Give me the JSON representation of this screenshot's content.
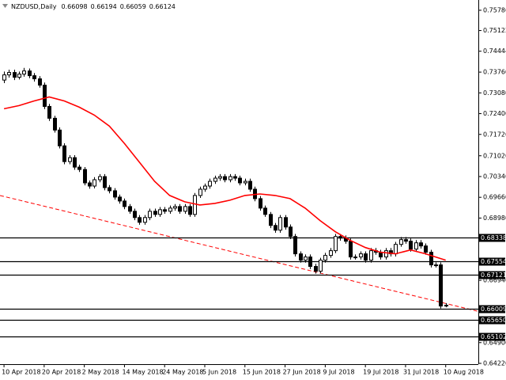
{
  "chart_data": {
    "type": "candlestick",
    "title": "NZDUSD,Daily",
    "categories": [
      "10 Apr 2018",
      null,
      null,
      null,
      null,
      null,
      null,
      null,
      "20 Apr 2018",
      null,
      null,
      null,
      null,
      null,
      null,
      null,
      "2 May 2018",
      null,
      null,
      null,
      null,
      null,
      null,
      null,
      "14 May 2018",
      null,
      null,
      null,
      null,
      null,
      null,
      null,
      "24 May 2018",
      null,
      null,
      null,
      null,
      null,
      null,
      null,
      "5 Jun 2018",
      null,
      null,
      null,
      null,
      null,
      null,
      null,
      "15 Jun 2018",
      null,
      null,
      null,
      null,
      null,
      null,
      null,
      "27 Jun 2018",
      null,
      null,
      null,
      null,
      null,
      null,
      null,
      "9 Jul 2018",
      null,
      null,
      null,
      null,
      null,
      null,
      null,
      "19 Jul 2018",
      null,
      null,
      null,
      null,
      null,
      null,
      null,
      "31 Jul 2018",
      null,
      null,
      null,
      null,
      null,
      null,
      null,
      "10 Aug 2018"
    ],
    "open": [
      0.735,
      0.73669,
      0.73747,
      0.73592,
      0.73695,
      0.73798,
      0.73643,
      0.7354,
      0.73333,
      0.72636,
      0.72249,
      0.71862,
      0.71345,
      0.70829,
      0.70958,
      0.70648,
      0.70571,
      0.70132,
      0.70028,
      0.70235,
      0.70338,
      0.69977,
      0.69874,
      0.69667,
      0.69538,
      0.69357,
      0.69202,
      0.68996,
      0.68841,
      0.68996,
      0.69202,
      0.69099,
      0.69254,
      0.69202,
      0.69306,
      0.69357,
      0.69202,
      0.69357,
      0.69099,
      0.69719,
      0.69925,
      0.70028,
      0.70183,
      0.70287,
      0.70338,
      0.70235,
      0.70338,
      0.70287,
      0.70132,
      0.70183,
      0.69925,
      0.69615,
      0.69306,
      0.69099,
      0.68737,
      0.68583,
      0.68996,
      0.68686,
      0.68376,
      0.67808,
      0.67601,
      0.67705,
      0.67395,
      0.6724,
      0.67601,
      0.67756,
      0.67911,
      0.68376,
      0.68324,
      0.68221,
      0.67705,
      0.67705,
      0.67808,
      0.67601,
      0.67911,
      0.6786,
      0.67705,
      0.67911,
      0.67808,
      0.68118,
      0.68273,
      0.68221,
      0.67963,
      0.68169,
      0.68066,
      0.6786,
      0.67446,
      0.67446,
      0.66098
    ],
    "high": [
      0.7378,
      0.7384,
      0.7384,
      0.7378,
      0.739,
      0.7388,
      0.7373,
      0.7363,
      0.7342,
      0.7272,
      0.7233,
      0.7195,
      0.7143,
      0.7104,
      0.7104,
      0.7073,
      0.7065,
      0.7021,
      0.7032,
      0.7042,
      0.7042,
      0.7006,
      0.6996,
      0.6975,
      0.6962,
      0.6944,
      0.6929,
      0.6908,
      0.6908,
      0.6929,
      0.6929,
      0.6934,
      0.6934,
      0.6939,
      0.6944,
      0.6944,
      0.6944,
      0.6944,
      0.698,
      0.7001,
      0.7011,
      0.7027,
      0.7037,
      0.7042,
      0.7042,
      0.7042,
      0.7042,
      0.7037,
      0.7027,
      0.7027,
      0.7001,
      0.697,
      0.6939,
      0.6918,
      0.6882,
      0.6908,
      0.6908,
      0.6877,
      0.6846,
      0.6789,
      0.6779,
      0.6779,
      0.6748,
      0.6768,
      0.6784,
      0.68,
      0.6846,
      0.6846,
      0.6841,
      0.6831,
      0.6779,
      0.6789,
      0.6789,
      0.68,
      0.68,
      0.6794,
      0.68,
      0.68,
      0.682,
      0.6836,
      0.6836,
      0.6831,
      0.6826,
      0.6826,
      0.6815,
      0.6794,
      0.6753,
      0.6753,
      0.66194
    ],
    "low": [
      0.734,
      0.7358,
      0.735,
      0.7352,
      0.7361,
      0.7356,
      0.7345,
      0.7325,
      0.7255,
      0.7216,
      0.7178,
      0.7126,
      0.7074,
      0.7074,
      0.7056,
      0.7049,
      0.7005,
      0.6994,
      0.6995,
      0.7015,
      0.6989,
      0.6979,
      0.6958,
      0.6945,
      0.6927,
      0.6912,
      0.6891,
      0.6876,
      0.6876,
      0.6891,
      0.6902,
      0.6902,
      0.6912,
      0.6912,
      0.6922,
      0.6912,
      0.6912,
      0.6902,
      0.6902,
      0.6964,
      0.6984,
      0.6994,
      0.701,
      0.702,
      0.7015,
      0.7015,
      0.702,
      0.7005,
      0.7005,
      0.6984,
      0.6953,
      0.6922,
      0.6902,
      0.6865,
      0.685,
      0.685,
      0.686,
      0.6829,
      0.6772,
      0.6752,
      0.6752,
      0.6731,
      0.6716,
      0.6716,
      0.6752,
      0.6768,
      0.6783,
      0.6824,
      0.6814,
      0.6762,
      0.6762,
      0.6762,
      0.6752,
      0.6752,
      0.6778,
      0.6762,
      0.6762,
      0.6772,
      0.6772,
      0.6804,
      0.6814,
      0.6788,
      0.6788,
      0.6798,
      0.6778,
      0.6736,
      0.6736,
      0.6602,
      0.66059
    ],
    "close": [
      0.73669,
      0.73747,
      0.73592,
      0.73695,
      0.73798,
      0.73643,
      0.7354,
      0.73333,
      0.72636,
      0.72249,
      0.71862,
      0.71345,
      0.70829,
      0.70958,
      0.70648,
      0.70571,
      0.70132,
      0.70028,
      0.70235,
      0.70338,
      0.69977,
      0.69874,
      0.69667,
      0.69538,
      0.69357,
      0.69202,
      0.68996,
      0.68841,
      0.68996,
      0.69202,
      0.69099,
      0.69254,
      0.69202,
      0.69306,
      0.69357,
      0.69202,
      0.69357,
      0.69099,
      0.69719,
      0.69925,
      0.70028,
      0.70183,
      0.70287,
      0.70338,
      0.70235,
      0.70338,
      0.70287,
      0.70132,
      0.70183,
      0.69925,
      0.69615,
      0.69306,
      0.69099,
      0.68737,
      0.68583,
      0.68996,
      0.68686,
      0.68376,
      0.67808,
      0.67601,
      0.67705,
      0.67395,
      0.6724,
      0.67601,
      0.67756,
      0.67911,
      0.68376,
      0.68324,
      0.68221,
      0.67705,
      0.67705,
      0.67808,
      0.67601,
      0.67911,
      0.6786,
      0.67705,
      0.67911,
      0.67808,
      0.68118,
      0.68273,
      0.68221,
      0.67963,
      0.68169,
      0.68066,
      0.6786,
      0.67446,
      0.67446,
      0.66098,
      0.66124
    ],
    "up_color": "#ffffff",
    "down_color": "#000000",
    "moving_average": {
      "color": "#ff0000",
      "x": [
        0,
        3,
        6,
        9,
        12,
        15,
        18,
        21,
        24,
        27,
        30,
        33,
        36,
        39,
        42,
        45,
        48,
        51,
        54,
        57,
        60,
        63,
        66,
        69,
        72,
        75,
        78,
        81,
        84,
        86,
        88
      ],
      "values": [
        0.72559,
        0.72662,
        0.72817,
        0.72946,
        0.72817,
        0.72611,
        0.72352,
        0.71991,
        0.71423,
        0.70803,
        0.70183,
        0.69719,
        0.69512,
        0.69409,
        0.69461,
        0.69564,
        0.69719,
        0.6977,
        0.69719,
        0.69615,
        0.69306,
        0.68892,
        0.68531,
        0.68247,
        0.68014,
        0.6786,
        0.67808,
        0.67937,
        0.67808,
        0.67705,
        0.67601
      ]
    },
    "trendline": {
      "color": "#ff0000",
      "x": [
        -0.8,
        94.5
      ],
      "values": [
        0.69719,
        0.65923
      ]
    },
    "levels": [
      {
        "value": 0.68338,
        "label": "0.68338"
      },
      {
        "value": 0.67554,
        "label": "0.67554"
      },
      {
        "value": 0.67121,
        "label": "0.67121"
      },
      {
        "value": 0.66009,
        "label": "0.66009"
      },
      {
        "value": 0.6565,
        "label": "0.65650"
      },
      {
        "value": 0.65102,
        "label": "0.65102"
      }
    ],
    "xlim": [
      -0.8,
      94.5
    ],
    "ylim": [
      0.64194,
      0.76122
    ],
    "yticks": [
      {
        "value": 0.75786,
        "label": "0.75786"
      },
      {
        "value": 0.75122,
        "label": "0.75122"
      },
      {
        "value": 0.74444,
        "label": "0.74444"
      },
      {
        "value": 0.7376,
        "label": "0.73760"
      },
      {
        "value": 0.7308,
        "label": "0.73080"
      },
      {
        "value": 0.724,
        "label": "0.72400"
      },
      {
        "value": 0.7172,
        "label": "0.71720"
      },
      {
        "value": 0.7102,
        "label": "0.71020"
      },
      {
        "value": 0.7034,
        "label": "0.70340"
      },
      {
        "value": 0.6966,
        "label": "0.69660"
      },
      {
        "value": 0.6898,
        "label": "0.68980"
      },
      {
        "value": 0.6694,
        "label": "0.66940"
      },
      {
        "value": 0.649,
        "label": "0.64900"
      },
      {
        "value": 0.6422,
        "label": "0.64220"
      }
    ]
  }
}
